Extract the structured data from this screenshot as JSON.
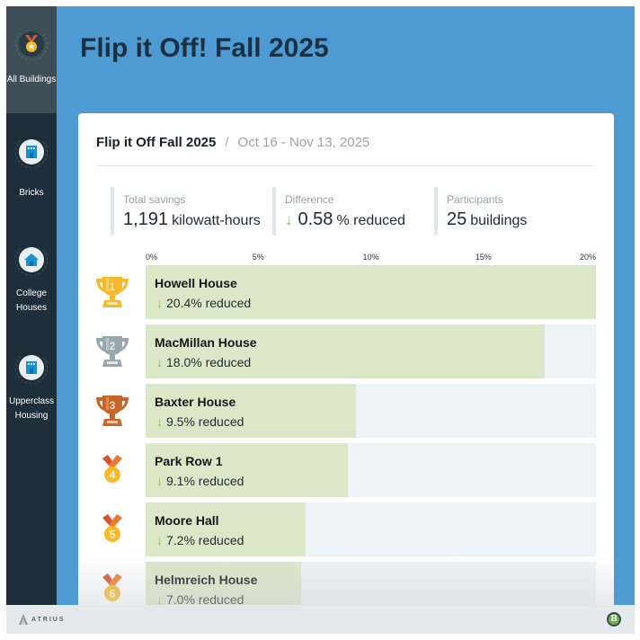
{
  "sidebar": {
    "items": [
      {
        "label": "All Buildings",
        "icon": "medal-icon",
        "active": true
      },
      {
        "label": "Bricks",
        "icon": "building-icon",
        "active": false
      },
      {
        "label": "College Houses",
        "icon": "house-icon",
        "active": false
      },
      {
        "label": "Upperclass Housing",
        "icon": "building-icon",
        "active": false
      }
    ]
  },
  "header": {
    "title": "Flip it Off! Fall 2025"
  },
  "card": {
    "title": "Flip it Off Fall 2025",
    "separator": "/",
    "dates": "Oct 16 - Nov 13, 2025"
  },
  "stats": {
    "total_savings": {
      "label": "Total savings",
      "value": "1,191",
      "unit": "kilowatt-hours"
    },
    "difference": {
      "label": "Difference",
      "arrow": "↓",
      "value": "0.58",
      "unit": "% reduced"
    },
    "participants": {
      "label": "Participants",
      "value": "25",
      "unit": "buildings"
    }
  },
  "axis": {
    "ticks": [
      "0%",
      "5%",
      "10%",
      "15%",
      "20%"
    ],
    "max": 20
  },
  "leaderboard": [
    {
      "rank": "1",
      "name": "Howell House",
      "value": "20.4% reduced",
      "pct": 20.4,
      "icon": "gold-trophy-icon"
    },
    {
      "rank": "2",
      "name": "MacMillan House",
      "value": "18.0% reduced",
      "pct": 18.0,
      "icon": "silver-trophy-icon"
    },
    {
      "rank": "3",
      "name": "Baxter House",
      "value": "9.5% reduced",
      "pct": 9.5,
      "icon": "bronze-trophy-icon"
    },
    {
      "rank": "4",
      "name": "Park Row 1",
      "value": "9.1% reduced",
      "pct": 9.1,
      "icon": "medal-icon"
    },
    {
      "rank": "5",
      "name": "Moore Hall",
      "value": "7.2% reduced",
      "pct": 7.2,
      "icon": "medal-icon"
    },
    {
      "rank": "6",
      "name": "Helmreich House",
      "value": "7.0% reduced",
      "pct": 7.0,
      "icon": "medal-icon"
    }
  ],
  "footer": {
    "brand": "ATRIUS",
    "badge": "B"
  },
  "colors": {
    "background": "#4e9bd3",
    "sidebar": "#1d2f3a",
    "bar_fill": "#dbe8c7",
    "bar_track": "#eef3f7",
    "reduced_arrow": "#7cbf3f",
    "gold": "#f6b92a",
    "silver": "#98a6ae",
    "bronze": "#c8662a"
  }
}
